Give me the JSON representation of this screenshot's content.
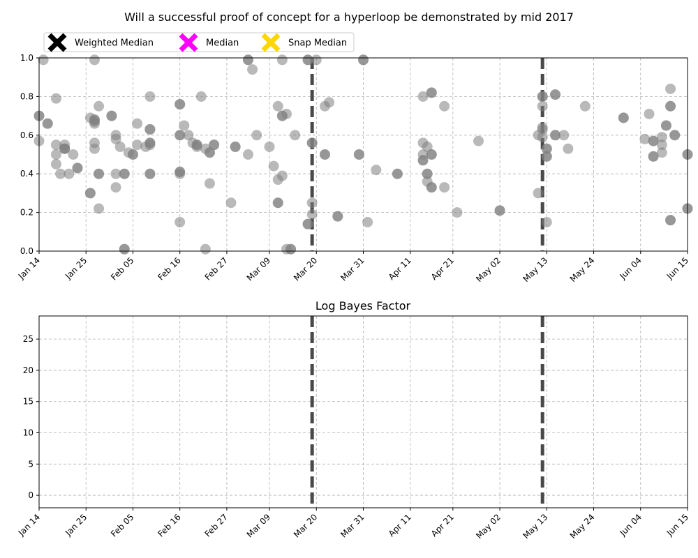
{
  "chart_data": [
    {
      "type": "scatter",
      "title": "Will a successful proof of concept for a hyperloop be demonstrated by mid 2017",
      "xlabel": "",
      "ylabel": "",
      "x_ticks": [
        "Jan 14",
        "Jan 25",
        "Feb 05",
        "Feb 16",
        "Feb 27",
        "Mar 09",
        "Mar 20",
        "Mar 31",
        "Apr 11",
        "Apr 21",
        "May 02",
        "May 13",
        "May 24",
        "Jun 04",
        "Jun 15"
      ],
      "xlim": [
        "2017-01-14",
        "2017-06-15"
      ],
      "y_ticks": [
        "0.0",
        "0.2",
        "0.4",
        "0.6",
        "0.8",
        "1.0"
      ],
      "ylim": [
        0,
        1
      ],
      "grid": true,
      "legend": {
        "placement": "top-left",
        "entries": [
          {
            "label": "Weighted Median",
            "color": "#000000",
            "marker": "x-icon"
          },
          {
            "label": "Median",
            "color": "#ff00ff",
            "marker": "x-icon"
          },
          {
            "label": "Snap Median",
            "color": "#ffd700",
            "marker": "x-icon"
          }
        ]
      },
      "vertical_lines": [
        "2017-03-19",
        "2017-05-12"
      ],
      "series": [
        {
          "marker_color": "#808080",
          "points": [
            [
              "2017-01-14",
              0.7
            ],
            [
              "2017-01-14",
              0.57
            ],
            [
              "2017-01-15",
              0.99
            ],
            [
              "2017-01-16",
              0.66
            ],
            [
              "2017-01-18",
              0.79
            ],
            [
              "2017-01-18",
              0.55
            ],
            [
              "2017-01-18",
              0.5
            ],
            [
              "2017-01-18",
              0.45
            ],
            [
              "2017-01-20",
              0.55
            ],
            [
              "2017-01-20",
              0.53
            ],
            [
              "2017-01-20",
              0.53
            ],
            [
              "2017-01-19",
              0.4
            ],
            [
              "2017-01-21",
              0.4
            ],
            [
              "2017-01-22",
              0.5
            ],
            [
              "2017-01-23",
              0.43
            ],
            [
              "2017-01-26",
              0.69
            ],
            [
              "2017-01-27",
              0.66
            ],
            [
              "2017-01-27",
              0.68
            ],
            [
              "2017-01-27",
              0.67
            ],
            [
              "2017-01-27",
              0.56
            ],
            [
              "2017-01-27",
              0.53
            ],
            [
              "2017-01-27",
              0.99
            ],
            [
              "2017-01-28",
              0.75
            ],
            [
              "2017-01-28",
              0.4
            ],
            [
              "2017-01-26",
              0.3
            ],
            [
              "2017-01-28",
              0.22
            ],
            [
              "2017-01-31",
              0.7
            ],
            [
              "2017-02-01",
              0.6
            ],
            [
              "2017-02-01",
              0.58
            ],
            [
              "2017-02-02",
              0.54
            ],
            [
              "2017-02-01",
              0.4
            ],
            [
              "2017-02-03",
              0.4
            ],
            [
              "2017-02-01",
              0.33
            ],
            [
              "2017-02-03",
              0.01
            ],
            [
              "2017-02-04",
              0.51
            ],
            [
              "2017-02-05",
              0.5
            ],
            [
              "2017-02-06",
              0.66
            ],
            [
              "2017-02-06",
              0.55
            ],
            [
              "2017-02-09",
              0.8
            ],
            [
              "2017-02-09",
              0.63
            ],
            [
              "2017-02-09",
              0.56
            ],
            [
              "2017-02-09",
              0.55
            ],
            [
              "2017-02-08",
              0.54
            ],
            [
              "2017-02-09",
              0.4
            ],
            [
              "2017-02-16",
              0.76
            ],
            [
              "2017-02-17",
              0.65
            ],
            [
              "2017-02-16",
              0.6
            ],
            [
              "2017-02-18",
              0.6
            ],
            [
              "2017-02-16",
              0.41
            ],
            [
              "2017-02-16",
              0.4
            ],
            [
              "2017-02-16",
              0.15
            ],
            [
              "2017-02-19",
              0.56
            ],
            [
              "2017-02-20",
              0.55
            ],
            [
              "2017-02-20",
              0.54
            ],
            [
              "2017-02-21",
              0.8
            ],
            [
              "2017-02-22",
              0.53
            ],
            [
              "2017-02-23",
              0.51
            ],
            [
              "2017-02-23",
              0.35
            ],
            [
              "2017-02-22",
              0.01
            ],
            [
              "2017-02-24",
              0.55
            ],
            [
              "2017-02-28",
              0.25
            ],
            [
              "2017-03-01",
              0.54
            ],
            [
              "2017-03-04",
              0.99
            ],
            [
              "2017-03-05",
              0.94
            ],
            [
              "2017-03-04",
              0.5
            ],
            [
              "2017-03-06",
              0.6
            ],
            [
              "2017-03-09",
              0.54
            ],
            [
              "2017-03-10",
              0.44
            ],
            [
              "2017-03-11",
              0.75
            ],
            [
              "2017-03-11",
              0.37
            ],
            [
              "2017-03-11",
              0.25
            ],
            [
              "2017-03-12",
              0.99
            ],
            [
              "2017-03-12",
              0.7
            ],
            [
              "2017-03-12",
              0.39
            ],
            [
              "2017-03-13",
              0.71
            ],
            [
              "2017-03-13",
              0.01
            ],
            [
              "2017-03-14",
              0.01
            ],
            [
              "2017-03-15",
              0.6
            ],
            [
              "2017-03-18",
              0.99
            ],
            [
              "2017-03-20",
              0.99
            ],
            [
              "2017-03-19",
              0.56
            ],
            [
              "2017-03-19",
              0.25
            ],
            [
              "2017-03-19",
              0.19
            ],
            [
              "2017-03-18",
              0.14
            ],
            [
              "2017-03-22",
              0.75
            ],
            [
              "2017-03-23",
              0.77
            ],
            [
              "2017-03-22",
              0.5
            ],
            [
              "2017-03-25",
              0.18
            ],
            [
              "2017-03-30",
              0.5
            ],
            [
              "2017-03-31",
              0.99
            ],
            [
              "2017-04-01",
              0.15
            ],
            [
              "2017-04-03",
              0.42
            ],
            [
              "2017-04-08",
              0.4
            ],
            [
              "2017-04-14",
              0.8
            ],
            [
              "2017-04-16",
              0.82
            ],
            [
              "2017-04-14",
              0.56
            ],
            [
              "2017-04-15",
              0.54
            ],
            [
              "2017-04-14",
              0.5
            ],
            [
              "2017-04-16",
              0.5
            ],
            [
              "2017-04-14",
              0.47
            ],
            [
              "2017-04-15",
              0.4
            ],
            [
              "2017-04-15",
              0.36
            ],
            [
              "2017-04-16",
              0.33
            ],
            [
              "2017-04-19",
              0.75
            ],
            [
              "2017-04-19",
              0.33
            ],
            [
              "2017-04-22",
              0.2
            ],
            [
              "2017-04-27",
              0.57
            ],
            [
              "2017-05-02",
              0.21
            ],
            [
              "2017-05-12",
              0.8
            ],
            [
              "2017-05-12",
              0.75
            ],
            [
              "2017-05-12",
              0.64
            ],
            [
              "2017-05-12",
              0.63
            ],
            [
              "2017-05-11",
              0.6
            ],
            [
              "2017-05-12",
              0.59
            ],
            [
              "2017-05-11",
              0.3
            ],
            [
              "2017-05-13",
              0.53
            ],
            [
              "2017-05-13",
              0.49
            ],
            [
              "2017-05-13",
              0.15
            ],
            [
              "2017-05-15",
              0.81
            ],
            [
              "2017-05-15",
              0.6
            ],
            [
              "2017-05-17",
              0.6
            ],
            [
              "2017-05-18",
              0.53
            ],
            [
              "2017-05-22",
              0.75
            ],
            [
              "2017-05-31",
              0.69
            ],
            [
              "2017-06-05",
              0.58
            ],
            [
              "2017-06-06",
              0.71
            ],
            [
              "2017-06-07",
              0.57
            ],
            [
              "2017-06-07",
              0.49
            ],
            [
              "2017-06-09",
              0.59
            ],
            [
              "2017-06-09",
              0.55
            ],
            [
              "2017-06-09",
              0.51
            ],
            [
              "2017-06-10",
              0.65
            ],
            [
              "2017-06-11",
              0.84
            ],
            [
              "2017-06-11",
              0.75
            ],
            [
              "2017-06-11",
              0.16
            ],
            [
              "2017-06-12",
              0.6
            ],
            [
              "2017-06-15",
              0.5
            ],
            [
              "2017-06-15",
              0.22
            ]
          ],
          "dark_points": [
            [
              "2017-01-14",
              0.7
            ],
            [
              "2017-01-16",
              0.66
            ],
            [
              "2017-01-20",
              0.53
            ],
            [
              "2017-01-23",
              0.43
            ],
            [
              "2017-01-27",
              0.68
            ],
            [
              "2017-01-28",
              0.4
            ],
            [
              "2017-01-26",
              0.3
            ],
            [
              "2017-01-31",
              0.7
            ],
            [
              "2017-02-03",
              0.01
            ],
            [
              "2017-02-03",
              0.4
            ],
            [
              "2017-02-05",
              0.5
            ],
            [
              "2017-02-09",
              0.63
            ],
            [
              "2017-02-09",
              0.56
            ],
            [
              "2017-02-09",
              0.4
            ],
            [
              "2017-02-16",
              0.76
            ],
            [
              "2017-02-16",
              0.6
            ],
            [
              "2017-02-16",
              0.41
            ],
            [
              "2017-02-20",
              0.55
            ],
            [
              "2017-02-23",
              0.51
            ],
            [
              "2017-02-24",
              0.55
            ],
            [
              "2017-03-01",
              0.54
            ],
            [
              "2017-03-04",
              0.99
            ],
            [
              "2017-03-11",
              0.25
            ],
            [
              "2017-03-12",
              0.7
            ],
            [
              "2017-03-14",
              0.01
            ],
            [
              "2017-03-18",
              0.99
            ],
            [
              "2017-03-19",
              0.56
            ],
            [
              "2017-03-18",
              0.14
            ],
            [
              "2017-03-22",
              0.5
            ],
            [
              "2017-03-25",
              0.18
            ],
            [
              "2017-03-30",
              0.5
            ],
            [
              "2017-03-31",
              0.99
            ],
            [
              "2017-04-08",
              0.4
            ],
            [
              "2017-04-16",
              0.82
            ],
            [
              "2017-04-14",
              0.47
            ],
            [
              "2017-04-15",
              0.4
            ],
            [
              "2017-04-16",
              0.5
            ],
            [
              "2017-04-16",
              0.33
            ],
            [
              "2017-05-02",
              0.21
            ],
            [
              "2017-05-12",
              0.8
            ],
            [
              "2017-05-13",
              0.53
            ],
            [
              "2017-05-13",
              0.49
            ],
            [
              "2017-05-15",
              0.81
            ],
            [
              "2017-05-15",
              0.6
            ],
            [
              "2017-05-31",
              0.69
            ],
            [
              "2017-06-07",
              0.57
            ],
            [
              "2017-06-07",
              0.49
            ],
            [
              "2017-06-10",
              0.65
            ],
            [
              "2017-06-11",
              0.75
            ],
            [
              "2017-06-11",
              0.16
            ],
            [
              "2017-06-12",
              0.6
            ],
            [
              "2017-06-15",
              0.5
            ],
            [
              "2017-06-15",
              0.22
            ]
          ]
        }
      ]
    },
    {
      "type": "line",
      "title": "Log Bayes Factor",
      "xlabel": "",
      "ylabel": "",
      "x_ticks": [
        "Jan 14",
        "Jan 25",
        "Feb 05",
        "Feb 16",
        "Feb 27",
        "Mar 09",
        "Mar 20",
        "Mar 31",
        "Apr 11",
        "Apr 21",
        "May 02",
        "May 13",
        "May 24",
        "Jun 04",
        "Jun 15"
      ],
      "xlim": [
        "2017-01-14",
        "2017-06-15"
      ],
      "y_ticks": [
        "0",
        "5",
        "10",
        "15",
        "20",
        "25"
      ],
      "ylim": [
        -2,
        28.7
      ],
      "grid": true,
      "vertical_lines": [
        "2017-03-19",
        "2017-05-12"
      ],
      "series": []
    }
  ]
}
